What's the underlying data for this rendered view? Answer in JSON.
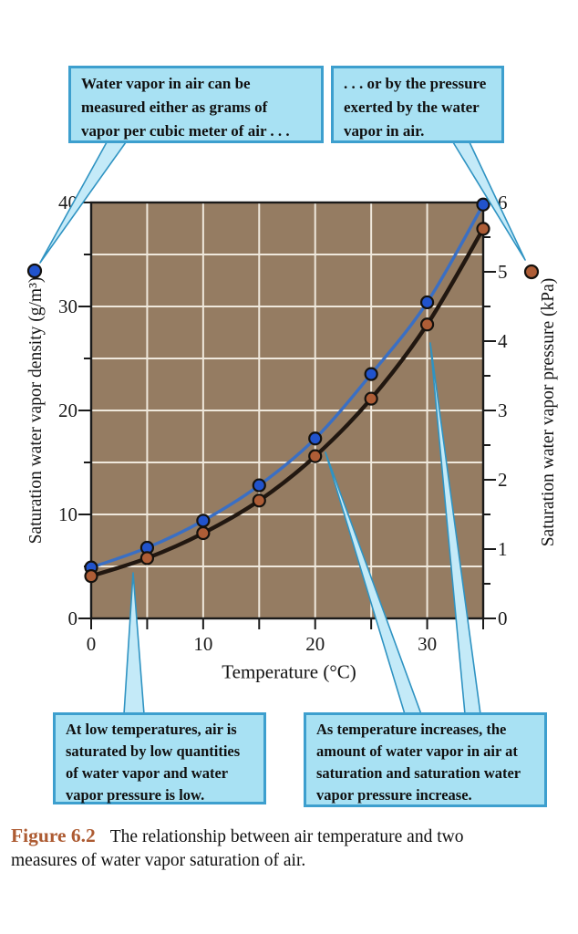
{
  "figure": {
    "callouts": {
      "top_left": {
        "lines": [
          "Water vapor in air can be",
          "measured either as grams of",
          "vapor per cubic meter of air . . ."
        ]
      },
      "top_right": {
        "lines": [
          ". . . or by the pressure",
          "exerted by the water",
          "vapor in air."
        ]
      },
      "bottom_left": {
        "lines": [
          "At low temperatures, air is",
          "saturated by low quantities",
          "of water vapor and water",
          "vapor pressure is low."
        ]
      },
      "bottom_right": {
        "lines": [
          "As temperature increases, the",
          "amount of water vapor in air at",
          "saturation and saturation water",
          "vapor pressure increase."
        ]
      }
    },
    "caption": {
      "label": "Figure 6.2",
      "lines": [
        "The relationship between air temperature and two",
        "measures of water vapor saturation of air."
      ]
    }
  },
  "chart_data": {
    "type": "line",
    "x": [
      0,
      5,
      10,
      15,
      20,
      25,
      30,
      35
    ],
    "xlabel": "Temperature (°C)",
    "xlim": [
      0,
      35
    ],
    "x_ticks_labeled": [
      0,
      10,
      20,
      30
    ],
    "x_ticks_all": [
      0,
      5,
      10,
      15,
      20,
      25,
      30,
      35
    ],
    "left_axis": {
      "label": "Saturation water vapor density (g/m³)",
      "unit": "g/m³",
      "lim": [
        0,
        40
      ],
      "ticks_labeled": [
        0,
        10,
        20,
        30,
        40
      ],
      "ticks_minor": [
        5,
        15,
        25,
        35
      ]
    },
    "right_axis": {
      "label": "Saturation water vapor pressure (kPa)",
      "unit": "kPa",
      "lim": [
        0,
        6
      ],
      "ticks_labeled": [
        0,
        1,
        2,
        3,
        4,
        5,
        6
      ],
      "ticks_minor": [
        0.5,
        1.5,
        2.5,
        3.5,
        4.5,
        5.5
      ]
    },
    "grid": {
      "x_every": 5,
      "y_left_every": 5,
      "grid_on": true
    },
    "series": [
      {
        "name": "Saturation water vapor density (g/m³)",
        "axis": "left",
        "line_color": "#3A6FC4",
        "marker_color": "#2153CC",
        "values": [
          4.9,
          6.8,
          9.4,
          12.8,
          17.3,
          23.5,
          30.4,
          39.8
        ]
      },
      {
        "name": "Saturation water vapor pressure (kPa)",
        "axis": "right",
        "line_color": "#211710",
        "marker_color": "#AE5D36",
        "values": [
          0.61,
          0.87,
          1.23,
          1.7,
          2.34,
          3.17,
          4.24,
          5.62
        ]
      }
    ],
    "legend": [
      {
        "series": "Saturation water vapor density (g/m³)",
        "marker": "blue-dot",
        "position": "outside-left"
      },
      {
        "series": "Saturation water vapor pressure (kPa)",
        "marker": "brown-dot",
        "position": "outside-right"
      }
    ]
  },
  "colors": {
    "plot_bg": "#957C62",
    "grid": "#EFE8DC",
    "axis": "#1A1A1A",
    "tick_text": "#1A1A1A",
    "callout_fill": "#A8E1F3",
    "callout_border": "#3D9FCE",
    "tail_fill": "#C4EAF8",
    "tail_edge": "#2F93C2",
    "figure_label": "#AD5B32",
    "marker_outline": "#14110D"
  }
}
